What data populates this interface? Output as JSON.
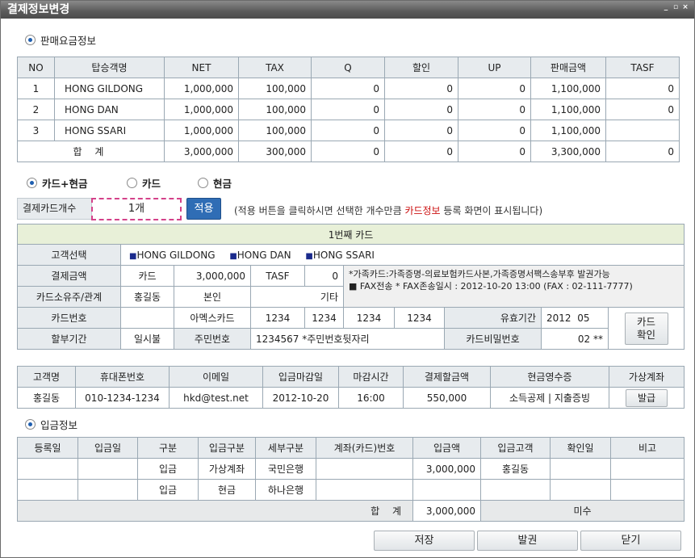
{
  "window": {
    "title": "결제정보변경",
    "min_label": "_",
    "restore_label": "▫",
    "close_label": "×"
  },
  "sales_section": {
    "label": "판매요금정보"
  },
  "sales_table": {
    "headers": [
      "NO",
      "탑승객명",
      "NET",
      "TAX",
      "Q",
      "할인",
      "UP",
      "판매금액",
      "TASF"
    ],
    "rows": [
      [
        "1",
        "HONG GILDONG",
        "1,000,000",
        "100,000",
        "0",
        "0",
        "0",
        "1,100,000",
        "0"
      ],
      [
        "2",
        "HONG DAN",
        "1,000,000",
        "100,000",
        "0",
        "0",
        "0",
        "1,100,000",
        "0"
      ],
      [
        "3",
        "HONG SSARI",
        "1,000,000",
        "100,000",
        "0",
        "0",
        "0",
        "1,100,000",
        ""
      ]
    ],
    "total": {
      "label": "합 계",
      "net": "3,000,000",
      "tax": "300,000",
      "q": "0",
      "discount": "0",
      "up": "0",
      "sale": "3,300,000",
      "tasf": "0"
    }
  },
  "payment_type": {
    "options": [
      "카드+현금",
      "카드",
      "현금"
    ],
    "selected": 0
  },
  "card_count": {
    "label": "결제카드개수",
    "value": "1개",
    "apply_label": "적용",
    "note_before": "(적용 버튼을 클릭하시면 선택한 개수만큼 ",
    "note_highlight": "카드정보",
    "note_after": " 등록 화면이 표시됩니다)"
  },
  "card_form": {
    "title": "1번째 카드",
    "customer_label": "고객선택",
    "customers": [
      "HONG GILDONG",
      "HONG DAN",
      "HONG SSARI"
    ],
    "amount_label": "결제금액",
    "amount_type": "카드",
    "amount_value": "3,000,000",
    "tasf_label": "TASF",
    "tasf_value": "0",
    "notice_line1": "*가족카드:가족증명-의료보험카드사본,가족증명서팩스송부후 발권가능",
    "notice_line2": "■ FAX전송    * FAX존송일시 : 2012-10-20 13:00  (FAX : 02-111-7777)",
    "owner_label": "카드소유주/관계",
    "owner_name": "홍길동",
    "relation": "본인",
    "relation_other": "기타",
    "card_no_label": "카드번호",
    "card_type": "아멕스카드",
    "card_no": [
      "1234",
      "1234",
      "1234",
      "1234"
    ],
    "expiry_label": "유효기간",
    "expiry_year": "2012",
    "expiry_month": "05",
    "confirm_label_1": "카드",
    "confirm_label_2": "확인",
    "installment_label": "할부기간",
    "installment_value": "일시불",
    "ssn_label": "주민번호",
    "ssn_value": "1234567  *주민번호뒷자리",
    "pw_label": "카드비밀번호",
    "pw_value": "02 **"
  },
  "customer_table": {
    "headers": [
      "고객명",
      "휴대폰번호",
      "이메일",
      "입금마감일",
      "마감시간",
      "결제할금액",
      "현금영수증",
      "가상계좌"
    ],
    "row": [
      "홍길동",
      "010-1234-1234",
      "hkd@test.net",
      "2012-10-20",
      "16:00",
      "550,000",
      "소득공제 | 지출증빙"
    ],
    "issue_label": "발급"
  },
  "deposit_section": {
    "label": "입금정보"
  },
  "deposit_table": {
    "headers": [
      "등록일",
      "입금일",
      "구분",
      "입금구분",
      "세부구분",
      "계좌(카드)번호",
      "입금액",
      "입금고객",
      "확인일",
      "비고"
    ],
    "rows": [
      [
        "",
        "",
        "입금",
        "가상계좌",
        "국민은행",
        "",
        "3,000,000",
        "홍길동",
        "",
        ""
      ],
      [
        "",
        "",
        "입금",
        "현금",
        "하나은행",
        "",
        "",
        "",
        "",
        ""
      ]
    ],
    "total_label": "합 계",
    "total_value": "3,000,000",
    "status": "미수"
  },
  "footer": {
    "save_label": "저장",
    "issue_label": "발권",
    "close_label": "닫기"
  }
}
